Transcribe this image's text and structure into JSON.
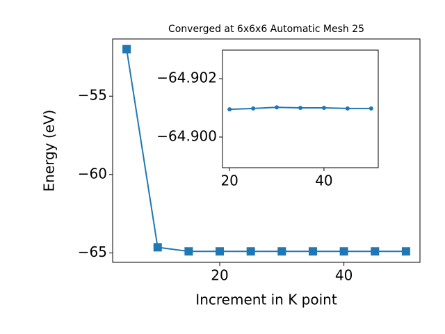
{
  "chart_data": [
    {
      "type": "line",
      "title": "Converged at 6x6x6 Automatic Mesh 25",
      "x_label": "Increment in K point",
      "y_label": "Energy (eV)",
      "x": [
        5,
        10,
        15,
        20,
        25,
        30,
        35,
        40,
        45,
        50
      ],
      "series": [
        {
          "color": "#1f77b4",
          "marker": "square",
          "values": [
            -52.0,
            -64.64,
            -64.901,
            -64.901,
            -64.901,
            -64.901,
            -64.901,
            -64.901,
            -64.901,
            -64.901
          ]
        }
      ],
      "xlim": [
        2.75,
        52.25
      ],
      "xticks": [
        20,
        40
      ],
      "ylim": [
        -65.6,
        -51.35
      ],
      "yticks": [
        {
          "value": -55,
          "label": "−55"
        },
        {
          "value": -60,
          "label": "−60"
        },
        {
          "value": -65,
          "label": "−65"
        }
      ]
    },
    {
      "type": "line",
      "x": [
        20,
        25,
        30,
        35,
        40,
        45,
        50
      ],
      "series": [
        {
          "color": "#1f77b4",
          "marker": "circle",
          "values": [
            -64.90095,
            -64.90098,
            -64.90102,
            -64.901,
            -64.901,
            -64.90098,
            -64.90098
          ]
        }
      ],
      "xlim": [
        18.5,
        51.5
      ],
      "xticks": [
        20,
        40
      ],
      "ylim": [
        -64.89895,
        -64.90298
      ],
      "yticks": [
        {
          "value": -64.902,
          "label": "−64.902"
        },
        {
          "value": -64.9,
          "label": "−64.900"
        }
      ]
    }
  ]
}
